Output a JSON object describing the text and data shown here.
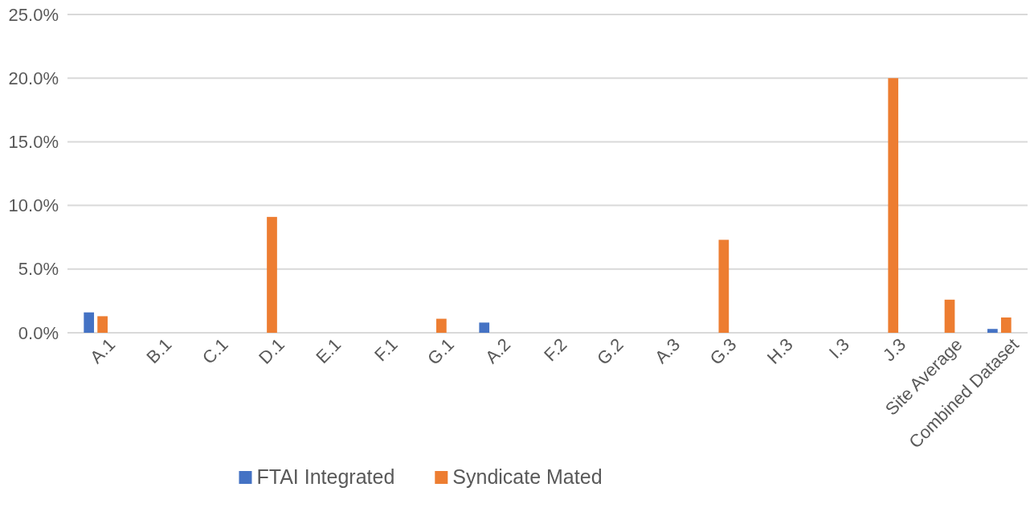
{
  "chart_data": {
    "type": "bar",
    "categories": [
      "A.1",
      "B.1",
      "C.1",
      "D.1",
      "E.1",
      "F.1",
      "G.1",
      "A.2",
      "F.2",
      "G.2",
      "A.3",
      "G.3",
      "H.3",
      "I.3",
      "J.3",
      "Site Average",
      "Combined Dataset"
    ],
    "series": [
      {
        "name": "FTAI Integrated",
        "color": "#4472c4",
        "values": [
          1.6,
          0,
          0,
          0,
          0,
          0,
          0,
          0.8,
          0,
          0,
          0,
          0,
          0,
          0,
          0,
          0,
          0.3
        ]
      },
      {
        "name": "Syndicate Mated",
        "color": "#ed7d31",
        "values": [
          1.3,
          0,
          0,
          9.1,
          0,
          0,
          1.1,
          0,
          0,
          0,
          0,
          7.3,
          0,
          0,
          20.0,
          2.6,
          1.2
        ]
      }
    ],
    "ylim": [
      0,
      25
    ],
    "yticks": [
      {
        "value": 0,
        "label": "0.0%"
      },
      {
        "value": 5,
        "label": "5.0%"
      },
      {
        "value": 10,
        "label": "10.0%"
      },
      {
        "value": 15,
        "label": "15.0%"
      },
      {
        "value": 20,
        "label": "20.0%"
      },
      {
        "value": 25,
        "label": "25.0%"
      }
    ],
    "grid": "y",
    "legend": "bottom"
  }
}
